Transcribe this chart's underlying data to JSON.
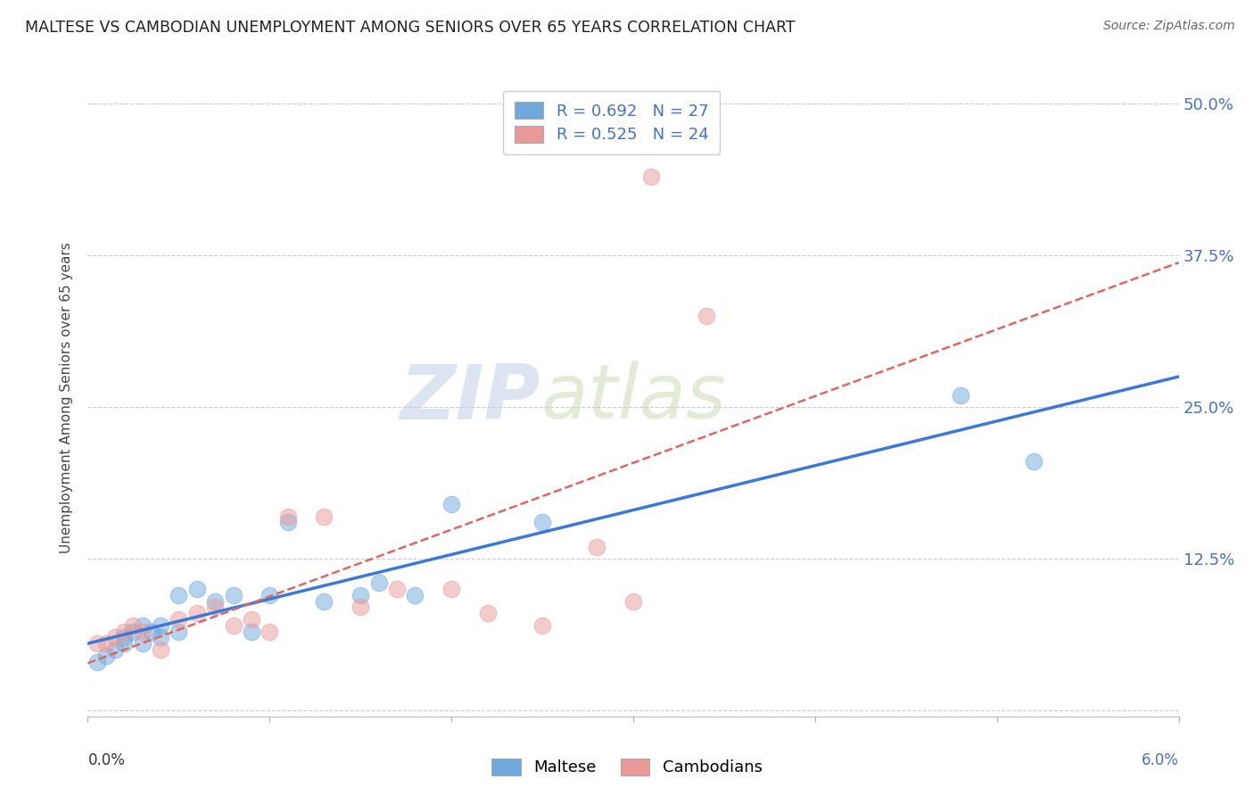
{
  "title": "MALTESE VS CAMBODIAN UNEMPLOYMENT AMONG SENIORS OVER 65 YEARS CORRELATION CHART",
  "source": "Source: ZipAtlas.com",
  "ylabel": "Unemployment Among Seniors over 65 years",
  "ytick_labels": [
    "",
    "12.5%",
    "25.0%",
    "37.5%",
    "50.0%"
  ],
  "ytick_vals": [
    0.0,
    0.125,
    0.25,
    0.375,
    0.5
  ],
  "xlim": [
    0.0,
    0.06
  ],
  "ylim": [
    -0.005,
    0.52
  ],
  "maltese_color": "#6fa8dc",
  "maltese_edge": "#6fa8dc",
  "cambodian_color": "#ea9999",
  "cambodian_edge": "#ea9999",
  "maltese_line_color": "#3c78d8",
  "cambodian_line_color": "#e06666",
  "maltese_R": "0.692",
  "maltese_N": "27",
  "cambodian_R": "0.525",
  "cambodian_N": "24",
  "maltese_x": [
    0.0005,
    0.001,
    0.0015,
    0.002,
    0.002,
    0.0025,
    0.003,
    0.003,
    0.0035,
    0.004,
    0.004,
    0.005,
    0.005,
    0.006,
    0.007,
    0.008,
    0.009,
    0.01,
    0.011,
    0.013,
    0.015,
    0.016,
    0.018,
    0.02,
    0.025,
    0.048,
    0.052
  ],
  "maltese_y": [
    0.04,
    0.045,
    0.05,
    0.055,
    0.06,
    0.065,
    0.07,
    0.055,
    0.065,
    0.06,
    0.07,
    0.065,
    0.095,
    0.1,
    0.09,
    0.095,
    0.065,
    0.095,
    0.155,
    0.09,
    0.095,
    0.105,
    0.095,
    0.17,
    0.155,
    0.26,
    0.205
  ],
  "cambodian_x": [
    0.0005,
    0.001,
    0.0015,
    0.002,
    0.0025,
    0.003,
    0.004,
    0.005,
    0.006,
    0.007,
    0.008,
    0.009,
    0.01,
    0.011,
    0.013,
    0.015,
    0.017,
    0.02,
    0.022,
    0.025,
    0.028,
    0.03,
    0.031,
    0.034
  ],
  "cambodian_y": [
    0.055,
    0.055,
    0.06,
    0.065,
    0.07,
    0.065,
    0.05,
    0.075,
    0.08,
    0.085,
    0.07,
    0.075,
    0.065,
    0.16,
    0.16,
    0.085,
    0.1,
    0.1,
    0.08,
    0.07,
    0.135,
    0.09,
    0.44,
    0.325
  ],
  "watermark_zip": "ZIP",
  "watermark_atlas": "atlas",
  "background_color": "#ffffff",
  "grid_color": "#cccccc",
  "legend_label_color": "#4472c4",
  "right_tick_color": "#4472c4",
  "bottom_label_left_color": "#333333",
  "bottom_label_right_color": "#4472c4"
}
